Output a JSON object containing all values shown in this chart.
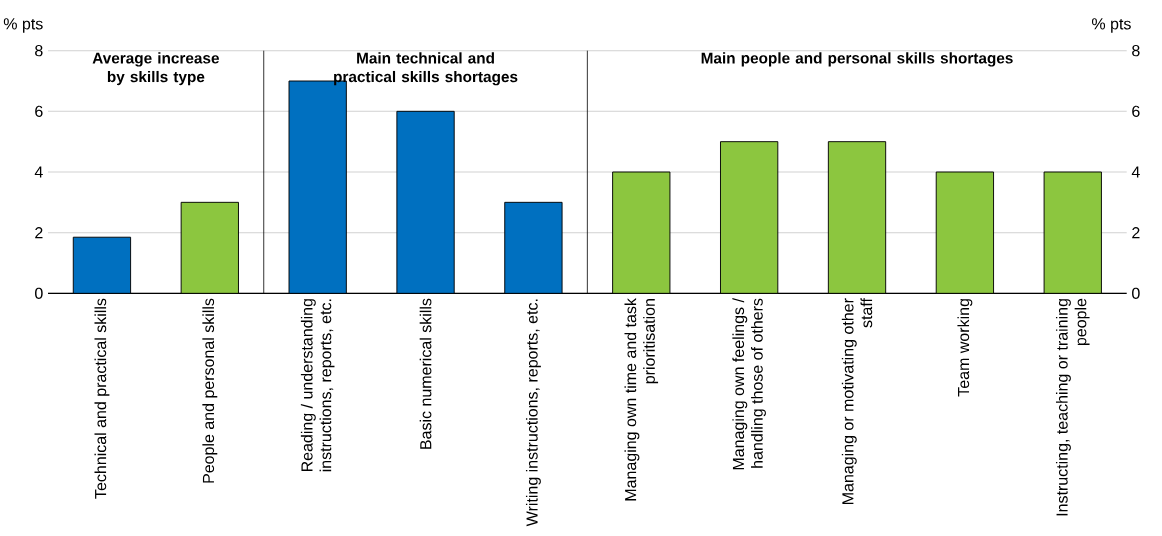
{
  "chart_data": {
    "type": "bar",
    "categories": [
      "Technical and practical skills",
      "People and personal skills",
      "Reading / understanding instructions, reports, etc.",
      "Basic numerical skills",
      "Writing instructions, reports, etc.",
      "Managing own time and task prioritisation",
      "Managing own feelings / handling those of others",
      "Managing or motivating other staff",
      "Team working",
      "Instructing, teaching or training people"
    ],
    "values": [
      1.85,
      3,
      7,
      6,
      3,
      4,
      5,
      5,
      4,
      4
    ],
    "colors": [
      "#0070c0",
      "#8cc63f",
      "#0070c0",
      "#0070c0",
      "#0070c0",
      "#8cc63f",
      "#8cc63f",
      "#8cc63f",
      "#8cc63f",
      "#8cc63f"
    ],
    "ylabel": "% pts",
    "y2label": "% pts",
    "ylim": [
      0,
      8
    ],
    "yticks": [
      0,
      2,
      4,
      6,
      8
    ],
    "y2lim": [
      0,
      8
    ],
    "y2ticks": [
      0,
      2,
      4,
      6,
      8
    ],
    "grid": "y",
    "annotations": [
      "Average increase by skills type",
      "Main technical and practical skills shortages",
      "Main people and personal skills shortages"
    ]
  }
}
